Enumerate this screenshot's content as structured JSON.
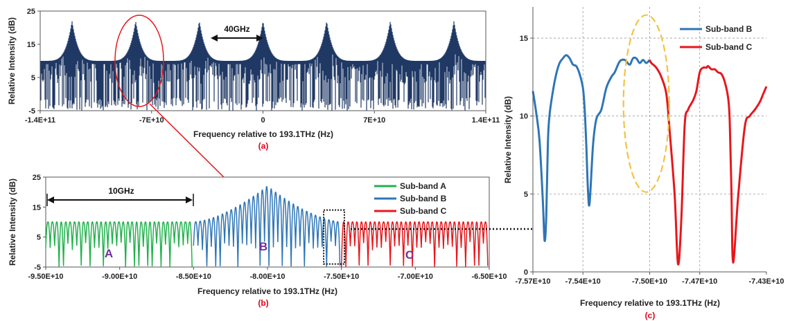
{
  "colors": {
    "navy": "#1f3864",
    "green": "#22b14c",
    "blue": "#2e75b6",
    "red": "#e8161b",
    "yellow": "#f5c242",
    "caption": "#e2001a",
    "letters": "#7030a0"
  },
  "chart_data": [
    {
      "id": "a",
      "type": "line",
      "caption": "(a)",
      "xlabel": "Frequency relative to 193.1THz (Hz)",
      "ylabel": "Relative Intensity (dB)",
      "xlim": [
        -140000000000,
        140000000000
      ],
      "ylim": [
        -5,
        25
      ],
      "xticks": [
        -140000000000,
        -70000000000,
        0,
        70000000000,
        140000000000
      ],
      "xtick_labels": [
        "-1.4E+11",
        "-7E+10",
        "0",
        "7E+10",
        "1.4E+11"
      ],
      "yticks": [
        -5,
        5,
        15,
        25
      ],
      "ytick_labels": [
        "-5",
        "5",
        "15",
        "25"
      ],
      "series": [
        {
          "color": "navy",
          "peaks_x": [
            -120000000000,
            -80000000000,
            -40000000000,
            0,
            40000000000,
            80000000000,
            120000000000
          ],
          "peak_value": 22,
          "floor_value": 10,
          "min_value": -5
        }
      ],
      "annotation": "40GHz",
      "annotation_range": [
        -40000000000,
        0
      ],
      "highlight_center": [
        -80000000000,
        9
      ]
    },
    {
      "id": "b",
      "type": "line",
      "caption": "(b)",
      "xlabel": "Frequency relative to 193.1THz (Hz)",
      "ylabel": "Relative Intensity (dB)",
      "xlim": [
        -95000000000,
        -65000000000
      ],
      "ylim": [
        -5,
        25
      ],
      "xticks": [
        -95000000000,
        -90000000000,
        -85000000000,
        -80000000000,
        -75000000000,
        -70000000000,
        -65000000000
      ],
      "xtick_labels": [
        "-9.50E+10",
        "-9.00E+10",
        "-8.50E+10",
        "-8.00E+10",
        "-7.50E+10",
        "-7.00E+10",
        "-6.50E+10"
      ],
      "yticks": [
        -5,
        5,
        15,
        25
      ],
      "ytick_labels": [
        "-5",
        "5",
        "15",
        "25"
      ],
      "series": [
        {
          "name": "Sub-band A",
          "color": "green",
          "x_range": [
            -95000000000,
            -85000000000
          ]
        },
        {
          "name": "Sub-band B",
          "color": "blue",
          "x_range": [
            -85000000000,
            -75000000000
          ]
        },
        {
          "name": "Sub-band C",
          "color": "red",
          "x_range": [
            -75000000000,
            -65000000000
          ]
        }
      ],
      "center_x": -80000000000,
      "peak_value": 22,
      "floor_value": 10,
      "annotation": "10GHz",
      "annotation_range": [
        -95000000000,
        -85000000000
      ],
      "region_labels": [
        "A",
        "B",
        "C"
      ],
      "zoom_box_x": [
        -76200000000,
        -74800000000
      ],
      "zoom_box_y": [
        -4,
        14
      ],
      "legend_position": "top-right"
    },
    {
      "id": "c",
      "type": "line",
      "caption": "(c)",
      "xlabel": "Frequency relative to 193.1THz (Hz)",
      "ylabel": "Relative Intensity (dB)",
      "xlim": [
        -75700000000,
        -74300000000
      ],
      "ylim": [
        0,
        17
      ],
      "xticks": [
        -75700000000,
        -75400000000,
        -75000000000,
        -74700000000,
        -74300000000
      ],
      "xtick_labels": [
        "-7.57E+10",
        "-7.54E+10",
        "-7.50E+10",
        "-7.47E+10",
        "-7.43E+10"
      ],
      "yticks": [
        0,
        5,
        10,
        15
      ],
      "ytick_labels": [
        "0",
        "5",
        "10",
        "15"
      ],
      "grid": true,
      "legend_position": "top-right",
      "series": [
        {
          "name": "Sub-band B",
          "color": "blue",
          "x": [
            -75700000000,
            -75680000000,
            -75660000000,
            -75640000000,
            -75630000000,
            -75620000000,
            -75610000000,
            -75600000000,
            -75580000000,
            -75560000000,
            -75540000000,
            -75520000000,
            -75500000000,
            -75480000000,
            -75460000000,
            -75440000000,
            -75420000000,
            -75400000000,
            -75390000000,
            -75380000000,
            -75370000000,
            -75360000000,
            -75340000000,
            -75320000000,
            -75290000000,
            -75260000000,
            -75230000000,
            -75210000000,
            -75180000000,
            -75150000000,
            -75120000000,
            -75100000000,
            -75080000000,
            -75060000000,
            -75040000000,
            -75020000000,
            -75000000000
          ],
          "y": [
            11.6,
            10.2,
            8.4,
            4.5,
            2.0,
            3.6,
            8.4,
            10.1,
            11.6,
            12.7,
            13.4,
            13.7,
            13.9,
            13.7,
            13.3,
            13.2,
            12.7,
            11.8,
            10.5,
            8.2,
            5.3,
            4.4,
            8.1,
            9.8,
            10.4,
            11.8,
            12.5,
            12.8,
            13.5,
            13.6,
            13.3,
            13.7,
            13.7,
            13.4,
            13.6,
            13.4,
            13.6
          ]
        },
        {
          "name": "Sub-band C",
          "color": "red",
          "x": [
            -75000000000,
            -74990000000,
            -74960000000,
            -74930000000,
            -74900000000,
            -74880000000,
            -74850000000,
            -74830000000,
            -74810000000,
            -74790000000,
            -74770000000,
            -74740000000,
            -74720000000,
            -74700000000,
            -74680000000,
            -74660000000,
            -74650000000,
            -74630000000,
            -74610000000,
            -74590000000,
            -74570000000,
            -74550000000,
            -74530000000,
            -74520000000,
            -74510000000,
            -74500000000,
            -74470000000,
            -74430000000,
            -74400000000,
            -74370000000,
            -74340000000,
            -74320000000,
            -74300000000
          ],
          "y": [
            13.6,
            13.4,
            13.1,
            12.5,
            11.4,
            9.0,
            4.9,
            0.5,
            3.4,
            9.4,
            10.4,
            11.0,
            11.6,
            12.8,
            13.1,
            13.1,
            13.2,
            13.0,
            13.0,
            12.8,
            12.7,
            12.2,
            11.2,
            9.7,
            5.2,
            0.6,
            4.8,
            9.3,
            10.0,
            10.4,
            10.9,
            11.4,
            11.9
          ]
        }
      ],
      "highlight_center": [
        -75020000000,
        10.8
      ]
    }
  ]
}
